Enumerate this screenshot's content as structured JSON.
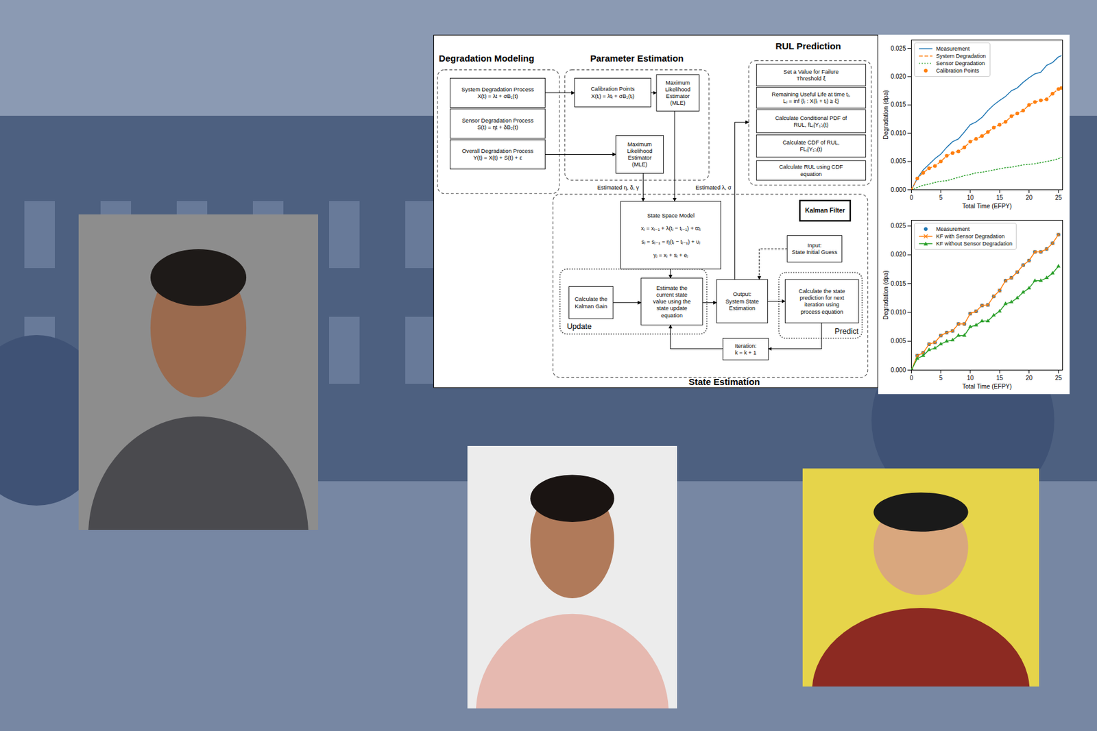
{
  "diagram": {
    "sections": {
      "modeling": "Degradation Modeling",
      "estimation": "Parameter Estimation",
      "rul": "RUL Prediction",
      "state": "State Estimation"
    },
    "nodes": {
      "sys": [
        "System Degradation Process",
        "X(t) = λt + σB₁(t)"
      ],
      "sensor": [
        "Sensor Degradation Process",
        "S(t) = ηt + δB₂(t)"
      ],
      "overall": [
        "Overall Degradation Process",
        "Y(t) = X(t) + S(t) + ε"
      ],
      "calib": [
        "Calibration Points",
        "X(tᵢ) = λtᵢ + σB₁(tᵢ)"
      ],
      "mle1": [
        "Maximum",
        "Likelihood",
        "Estimator",
        "(MLE)"
      ],
      "mle2": [
        "Maximum",
        "Likelihood",
        "Estimator",
        "(MLE)"
      ],
      "threshold": [
        "Set a Value for Failure",
        "Threshold ξ"
      ],
      "rul_def": [
        "Remaining Useful Life at time tⱼ,",
        "Lⱼ = inf {lⱼ : X(lⱼ + tⱼ) ≥ ξ}"
      ],
      "pdf": [
        "Calculate Conditional PDF of",
        "RUL, fLⱼ|Y₁:ⱼ(t)"
      ],
      "cdf": [
        "Calculate CDF of RUL,",
        "FLⱼ|Y₁:ⱼ(t)"
      ],
      "rul_calc": [
        "Calculate RUL using CDF",
        "equation"
      ],
      "kalman": [
        "Kalman Filter"
      ],
      "ssm": [
        "State Space Model",
        "xⱼ = xⱼ₋₁ + λ(tⱼ − tⱼ₋₁) + ϖⱼ",
        "sⱼ = sⱼ₋₁ = η(tⱼ − tⱼ₋₁) + υⱼ",
        "yⱼ = xⱼ + sⱼ + eⱼ"
      ],
      "input": [
        "Input:",
        "State Initial Guess"
      ],
      "gain": [
        "Calculate the",
        "Kalman Gain"
      ],
      "estimate": [
        "Estimate the",
        "current state",
        "value using the",
        "state update",
        "equation"
      ],
      "output": [
        "Output:",
        "System State",
        "Estimation"
      ],
      "predict_calc": [
        "Calculate the state",
        "prediction for next",
        "iteration using",
        "process equation"
      ],
      "iteration": [
        "Iteration:",
        "k = k + 1"
      ]
    },
    "group_labels": {
      "update": "Update",
      "predict": "Predict"
    },
    "edge_labels": {
      "params_sensor": "Estimated η, δ, γ",
      "params_system": "Estimated λ, σ"
    }
  },
  "chart_data": [
    {
      "type": "line",
      "xlabel": "Total Time (EFPY)",
      "ylabel": "Degradation (dpa)",
      "x": [
        0,
        1,
        2,
        3,
        4,
        5,
        6,
        7,
        8,
        9,
        10,
        11,
        12,
        13,
        14,
        15,
        16,
        17,
        18,
        19,
        20,
        21,
        22,
        23,
        24,
        25,
        25.5
      ],
      "xlim": [
        0,
        25.7
      ],
      "ylim": [
        0,
        0.0265
      ],
      "xticks": [
        0,
        5,
        10,
        15,
        20,
        25
      ],
      "yticks": [
        {
          "value": 0,
          "label": "0.000"
        },
        {
          "value": 0.005,
          "label": "0.005"
        },
        {
          "value": 0.01,
          "label": "0.010"
        },
        {
          "value": 0.015,
          "label": "0.015"
        },
        {
          "value": 0.02,
          "label": "0.020"
        },
        {
          "value": 0.025,
          "label": "0.025"
        }
      ],
      "grid": false,
      "legend": "upper left",
      "series": [
        {
          "name": "Measurement",
          "color": "#1f77b4",
          "line_style": "solid",
          "values": [
            0,
            0.002,
            0.0035,
            0.0045,
            0.0055,
            0.0063,
            0.0075,
            0.0085,
            0.009,
            0.0102,
            0.0115,
            0.012,
            0.0128,
            0.014,
            0.015,
            0.0158,
            0.0165,
            0.0175,
            0.018,
            0.019,
            0.0198,
            0.0205,
            0.0208,
            0.022,
            0.0225,
            0.0235,
            0.0237
          ]
        },
        {
          "name": "System Degradation",
          "color": "#ff7f0e",
          "line_style": "dashed",
          "values": [
            0,
            0.002,
            0.003,
            0.0038,
            0.0042,
            0.005,
            0.006,
            0.0065,
            0.0068,
            0.0075,
            0.0085,
            0.009,
            0.0095,
            0.0102,
            0.011,
            0.0115,
            0.012,
            0.013,
            0.0135,
            0.014,
            0.015,
            0.0155,
            0.0158,
            0.016,
            0.017,
            0.0178,
            0.018
          ]
        },
        {
          "name": "Sensor Degradation",
          "color": "#2ca02c",
          "line_style": "dotted",
          "values": [
            0,
            0.0004,
            0.0008,
            0.001,
            0.0013,
            0.0015,
            0.0016,
            0.0019,
            0.0022,
            0.0025,
            0.0027,
            0.003,
            0.0031,
            0.0033,
            0.0035,
            0.0037,
            0.0039,
            0.004,
            0.0042,
            0.0044,
            0.0045,
            0.0046,
            0.0048,
            0.005,
            0.0052,
            0.0055,
            0.0057
          ]
        },
        {
          "name": "Calibration Points",
          "color": "#ff7f0e",
          "type": "scatter",
          "marker": "circle",
          "values": [
            0,
            0.002,
            0.003,
            0.0038,
            0.0042,
            0.005,
            0.006,
            0.0065,
            0.0068,
            0.0075,
            0.0085,
            0.009,
            0.0095,
            0.0102,
            0.011,
            0.0115,
            0.012,
            0.013,
            0.0135,
            0.014,
            0.015,
            0.0155,
            0.0158,
            0.016,
            0.017,
            0.0178,
            0.018
          ]
        }
      ]
    },
    {
      "type": "line",
      "xlabel": "Total Time (EFPY)",
      "ylabel": "Degradation (dpa)",
      "x": [
        0,
        1,
        2,
        3,
        4,
        5,
        6,
        7,
        8,
        9,
        10,
        11,
        12,
        13,
        14,
        15,
        16,
        17,
        18,
        19,
        20,
        21,
        22,
        23,
        24,
        25
      ],
      "xlim": [
        0,
        25.7
      ],
      "ylim": [
        0,
        0.026
      ],
      "xticks": [
        0,
        5,
        10,
        15,
        20,
        25
      ],
      "yticks": [
        {
          "value": 0,
          "label": "0.000"
        },
        {
          "value": 0.005,
          "label": "0.005"
        },
        {
          "value": 0.01,
          "label": "0.010"
        },
        {
          "value": 0.015,
          "label": "0.015"
        },
        {
          "value": 0.02,
          "label": "0.020"
        },
        {
          "value": 0.025,
          "label": "0.025"
        }
      ],
      "grid": false,
      "legend": "upper left",
      "series": [
        {
          "name": "Measurement",
          "color": "#1f77b4",
          "type": "scatter",
          "marker": "circle",
          "values": [
            0,
            0.0025,
            0.003,
            0.0045,
            0.0048,
            0.006,
            0.0065,
            0.0068,
            0.008,
            0.008,
            0.0098,
            0.0102,
            0.0112,
            0.0113,
            0.0128,
            0.0138,
            0.0155,
            0.016,
            0.017,
            0.0182,
            0.019,
            0.0205,
            0.0205,
            0.021,
            0.022,
            0.0235
          ]
        },
        {
          "name": "KF with Sensor Degradation",
          "color": "#ff7f0e",
          "line_style": "solid",
          "marker": "x",
          "values": [
            0,
            0.0025,
            0.003,
            0.0045,
            0.0048,
            0.006,
            0.0065,
            0.0068,
            0.008,
            0.008,
            0.0098,
            0.0102,
            0.0112,
            0.0113,
            0.0128,
            0.0138,
            0.0155,
            0.016,
            0.017,
            0.0182,
            0.019,
            0.0205,
            0.0205,
            0.021,
            0.022,
            0.0235
          ]
        },
        {
          "name": "KF without Sensor Degradation",
          "color": "#2ca02c",
          "line_style": "solid",
          "marker": "triangle",
          "values": [
            0,
            0.002,
            0.0025,
            0.0035,
            0.0038,
            0.0045,
            0.005,
            0.0052,
            0.006,
            0.006,
            0.0075,
            0.0078,
            0.0085,
            0.0085,
            0.0095,
            0.0102,
            0.0115,
            0.0118,
            0.0125,
            0.0135,
            0.0142,
            0.0155,
            0.0155,
            0.016,
            0.0168,
            0.018
          ]
        }
      ]
    }
  ]
}
